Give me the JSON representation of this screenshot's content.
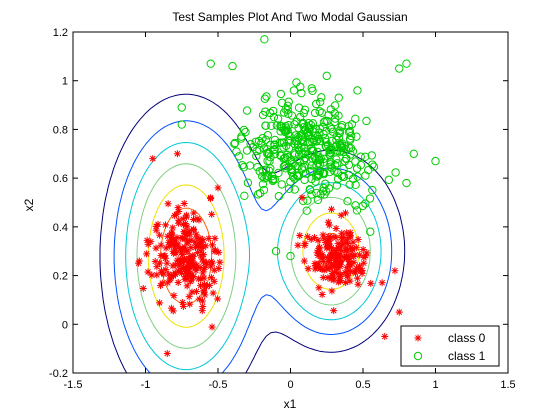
{
  "chart_data": {
    "type": "scatter",
    "title": "Test Samples Plot And Two Modal Gaussian",
    "xlabel": "x1",
    "ylabel": "x2",
    "xlim": [
      -1.5,
      1.5
    ],
    "ylim": [
      -0.2,
      1.2
    ],
    "xticks": [
      "-1.5",
      "-1",
      "-0.5",
      "0",
      "0.5",
      "1",
      "1.5"
    ],
    "yticks": [
      "-0.2",
      "0",
      "0.2",
      "0.4",
      "0.6",
      "0.8",
      "1",
      "1.2"
    ],
    "grid": false,
    "legend_position": "bottom-right",
    "series": [
      {
        "name": "class 0",
        "marker": "asterisk",
        "color": "#ff0000",
        "clusters": [
          {
            "center": [
              -0.72,
              0.28
            ],
            "spread": [
              0.17,
              0.13
            ],
            "count": 230
          },
          {
            "center": [
              0.32,
              0.27
            ],
            "spread": [
              0.14,
              0.1
            ],
            "count": 170
          }
        ],
        "extra_points": [
          [
            -0.95,
            0.68
          ],
          [
            -0.78,
            0.7
          ],
          [
            -0.5,
            0.56
          ],
          [
            0.75,
            0.05
          ],
          [
            0.72,
            0.22
          ],
          [
            -0.85,
            -0.12
          ],
          [
            0.65,
            -0.05
          ],
          [
            -0.55,
            0.52
          ],
          [
            0.08,
            0.52
          ]
        ]
      },
      {
        "name": "class 1",
        "marker": "circle",
        "color": "#00cc00",
        "clusters": [
          {
            "center": [
              0.1,
              0.72
            ],
            "spread": [
              0.32,
              0.14
            ],
            "count": 380
          }
        ],
        "extra_points": [
          [
            -0.18,
            1.17
          ],
          [
            -0.55,
            1.07
          ],
          [
            -0.4,
            1.06
          ],
          [
            0.8,
            1.07
          ],
          [
            0.75,
            1.05
          ],
          [
            0.25,
            1.02
          ],
          [
            1.0,
            0.67
          ],
          [
            0.85,
            0.7
          ],
          [
            0.8,
            0.58
          ],
          [
            -0.75,
            0.89
          ],
          [
            -0.75,
            0.82
          ],
          [
            0.55,
            0.38
          ],
          [
            -0.1,
            0.3
          ],
          [
            0.0,
            0.28
          ]
        ]
      }
    ],
    "contours": {
      "description_hidden": true,
      "components": [
        {
          "center": [
            -0.72,
            0.28
          ],
          "sigma": [
            0.25,
            0.28
          ],
          "weight": 1.0
        },
        {
          "center": [
            0.28,
            0.3
          ],
          "sigma": [
            0.22,
            0.18
          ],
          "weight": 0.85
        }
      ],
      "levels": [
        0.06,
        0.14,
        0.25,
        0.4,
        0.58,
        0.78
      ],
      "colors": [
        "#00007a",
        "#0050ff",
        "#00c8d8",
        "#7fd080",
        "#f0e000",
        "#ff6000",
        "#b00000"
      ]
    },
    "legend": [
      "class 0",
      "class 1"
    ]
  }
}
